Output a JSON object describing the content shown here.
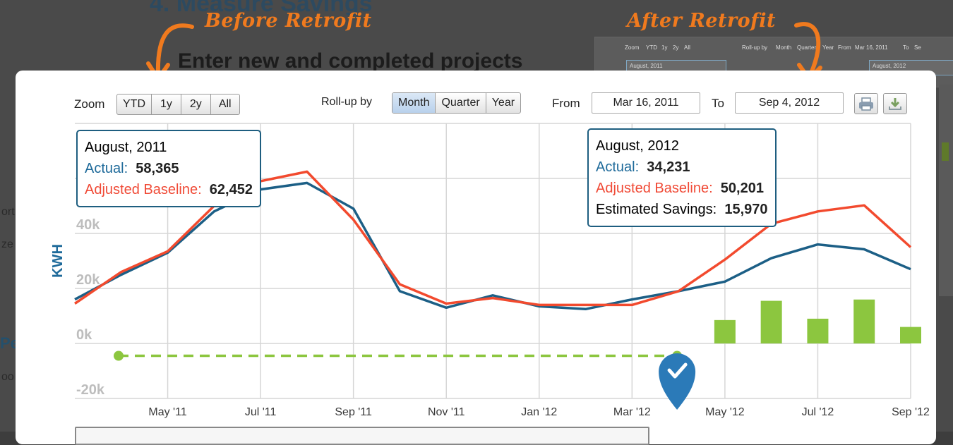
{
  "background": {
    "section_title": "4. Measure Savings",
    "section_subtitle": "Enter new and completed projects",
    "left_fragments": [
      "ort",
      "ze",
      "Pe",
      "oo"
    ],
    "thumb_toolbar": [
      "Zoom",
      "YTD",
      "1y",
      "2y",
      "All",
      "Roll-up by",
      "Month",
      "Quarter",
      "Year",
      "From",
      "Mar 16, 2011",
      "To",
      "Se"
    ],
    "thumb_boxes": [
      "August, 2011",
      "August, 2012"
    ]
  },
  "annotations": {
    "before": "Before Retrofit",
    "after": "After Retrofit",
    "color": "#f07a1e"
  },
  "toolbar": {
    "zoom_label": "Zoom",
    "zoom_options": [
      "YTD",
      "1y",
      "2y",
      "All"
    ],
    "rollup_label": "Roll-up by",
    "rollup_options": [
      "Month",
      "Quarter",
      "Year"
    ],
    "rollup_selected": "Month",
    "from_label": "From",
    "from_value": "Mar 16, 2011",
    "to_label": "To",
    "to_value": "Sep 4, 2012",
    "print_icon": "printer-icon",
    "download_icon": "download-icon"
  },
  "tooltips": {
    "before": {
      "date": "August, 2011",
      "actual_label": "Actual:",
      "actual_value": "58,365",
      "baseline_label": "Adjusted Baseline:",
      "baseline_value": "62,452"
    },
    "after": {
      "date": "August, 2012",
      "actual_label": "Actual:",
      "actual_value": "34,231",
      "baseline_label": "Adjusted Baseline:",
      "baseline_value": "50,201",
      "savings_label": "Estimated Savings:",
      "savings_value": "15,970"
    }
  },
  "colors": {
    "actual": "#1c5f86",
    "baseline": "#f24a2e",
    "savings": "#8cc63f",
    "tooltip_border": "#1e5e80"
  },
  "chart_data": {
    "type": "line",
    "ylabel": "KWH",
    "ylim": [
      -20000,
      80000
    ],
    "yticks": [
      -20000,
      0,
      20000,
      40000
    ],
    "ytick_labels": [
      "-20k",
      "0k",
      "20k",
      "40k"
    ],
    "x_tick_labels": [
      "May '11",
      "Jul '11",
      "Sep '11",
      "Nov '11",
      "Jan '12",
      "Mar '12",
      "May '12",
      "Jul '12",
      "Sep '12"
    ],
    "x": [
      "Mar '11",
      "Apr '11",
      "May '11",
      "Jun '11",
      "Jul '11",
      "Aug '11",
      "Sep '11",
      "Oct '11",
      "Nov '11",
      "Dec '11",
      "Jan '12",
      "Feb '12",
      "Mar '12",
      "Apr '12",
      "May '12",
      "Jun '12",
      "Jul '12",
      "Aug '12",
      "Sep '12"
    ],
    "series": [
      {
        "name": "Actual",
        "values": [
          16000,
          25000,
          33000,
          48000,
          56000,
          58365,
          49000,
          19000,
          13000,
          17500,
          13500,
          12500,
          16000,
          19000,
          22500,
          31000,
          36000,
          34231,
          27000
        ]
      },
      {
        "name": "Adjusted Baseline",
        "values": [
          14500,
          26000,
          33500,
          50000,
          59000,
          62452,
          45000,
          21500,
          14500,
          16500,
          14000,
          14000,
          14000,
          19000,
          30500,
          43500,
          48000,
          50201,
          35000
        ]
      }
    ],
    "savings_bars": [
      {
        "x": "May '12",
        "value": 8500
      },
      {
        "x": "Jun '12",
        "value": 15500
      },
      {
        "x": "Jul '12",
        "value": 9000
      },
      {
        "x": "Aug '12",
        "value": 15970
      },
      {
        "x": "Sep '12",
        "value": 6000
      }
    ],
    "baseline_period": {
      "start": "Mar '11",
      "end": "Apr '12",
      "style": "dashed"
    },
    "grid": true
  }
}
